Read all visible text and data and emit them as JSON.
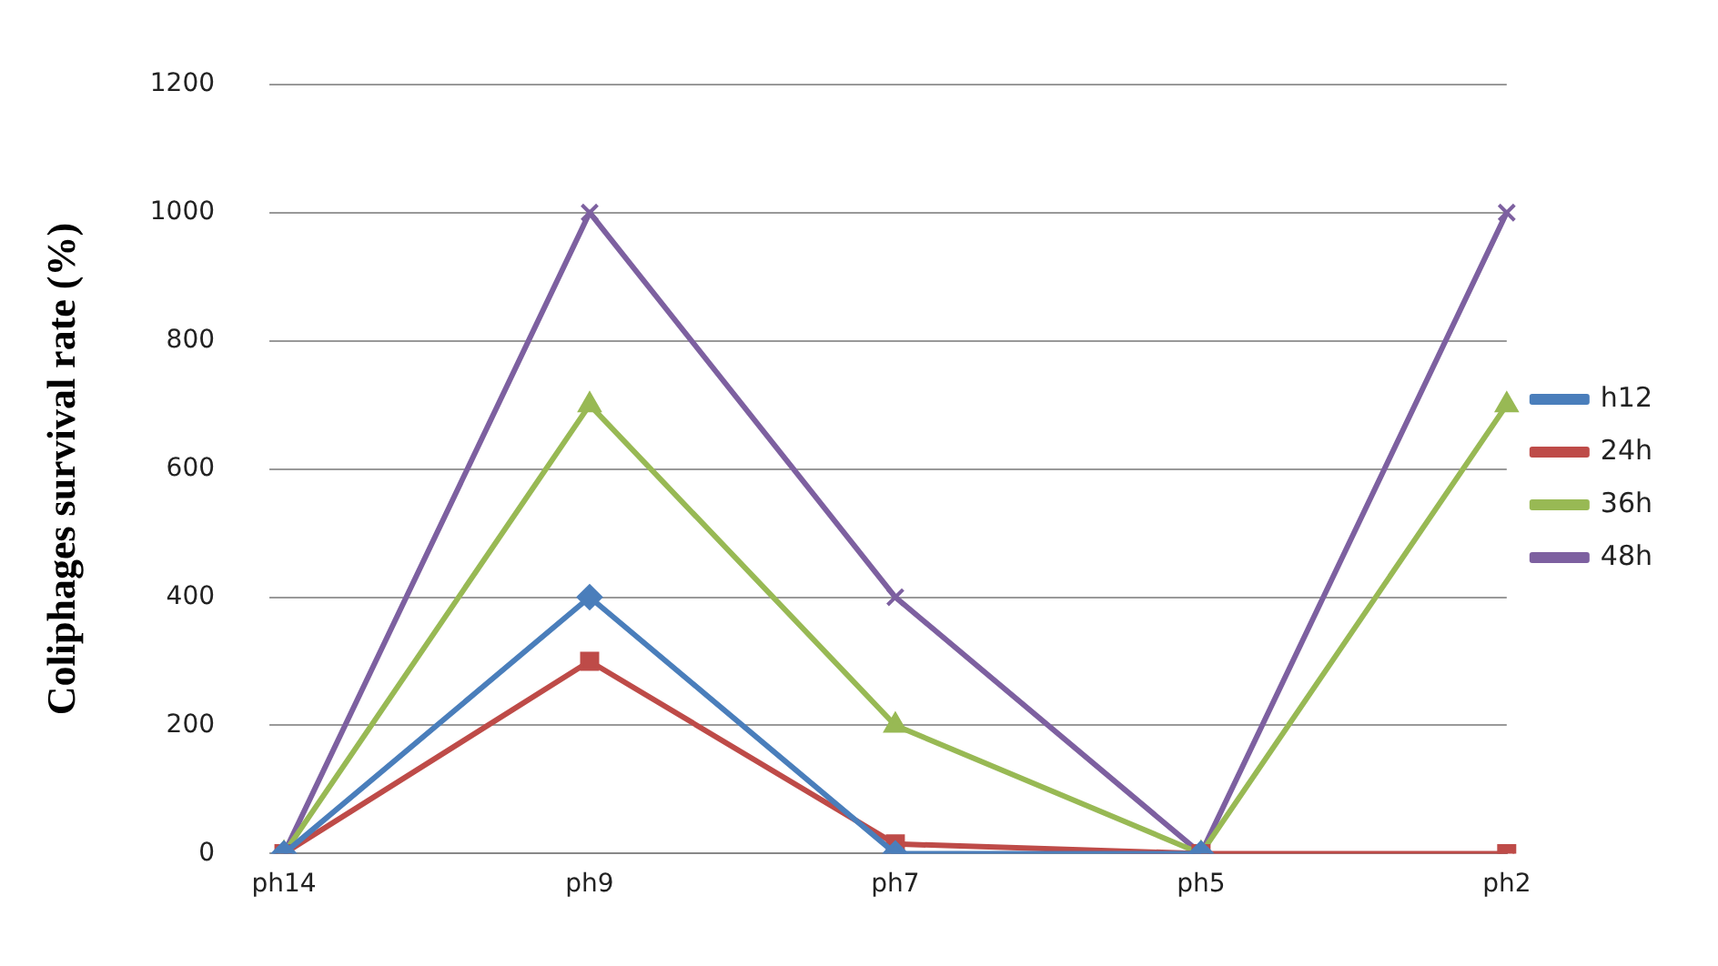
{
  "chart_data": {
    "type": "line",
    "ylabel": "Coliphages survival rate (%)",
    "categories": [
      "ph14",
      "ph9",
      "ph7",
      "ph5",
      "ph2"
    ],
    "series": [
      {
        "name": "h12",
        "color": "#4a7ebb",
        "marker": "diamond",
        "values": [
          0,
          400,
          0,
          0,
          null
        ]
      },
      {
        "name": "24h",
        "color": "#be4b48",
        "marker": "square",
        "values": [
          0,
          300,
          15,
          0,
          0
        ]
      },
      {
        "name": "36h",
        "color": "#98b954",
        "marker": "triangle",
        "values": [
          0,
          700,
          200,
          0,
          700
        ]
      },
      {
        "name": "48h",
        "color": "#7d60a0",
        "marker": "cross",
        "values": [
          0,
          1000,
          400,
          0,
          1000
        ]
      }
    ],
    "ylim": [
      0,
      1200
    ],
    "yticks": [
      0,
      200,
      400,
      600,
      800,
      1000,
      1200
    ],
    "grid": "y",
    "legend": "right"
  }
}
